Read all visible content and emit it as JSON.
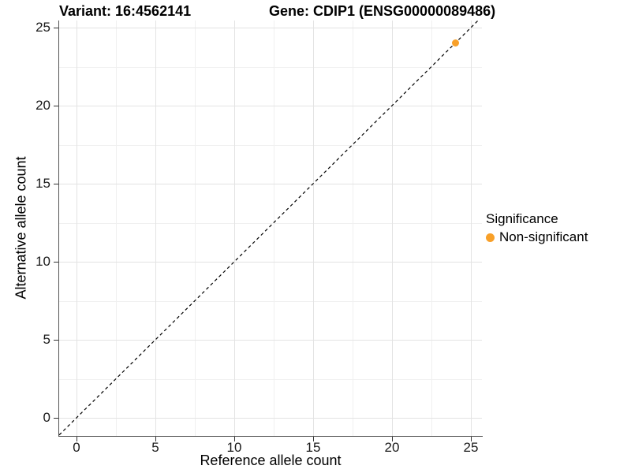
{
  "header": {
    "variant_title": "Variant: 16:4562141",
    "gene_title": "Gene: CDIP1 (ENSG00000089486)"
  },
  "legend": {
    "title": "Significance",
    "items": [
      {
        "label": "Non-significant",
        "color": "#F8A029"
      }
    ]
  },
  "colors": {
    "background": "#FFFFFF",
    "grid_major": "#E3E3E3",
    "grid_minor": "#F0F0F0",
    "axis_line": "#555555",
    "tick": "#333333",
    "text": "#000000",
    "point": "#F8A029",
    "reference_line": "#000000"
  },
  "chart_data": {
    "type": "scatter",
    "title": "Variant: 16:4562141   Gene: CDIP1 (ENSG00000089486)",
    "xlabel": "Reference allele count",
    "ylabel": "Alternative allele count",
    "x_ticks": [
      0,
      5,
      10,
      15,
      20,
      25
    ],
    "y_ticks": [
      0,
      5,
      10,
      15,
      20,
      25
    ],
    "x_minor_ticks": [
      2.5,
      7.5,
      12.5,
      17.5,
      22.5
    ],
    "y_minor_ticks": [
      2.5,
      7.5,
      12.5,
      17.5,
      22.5
    ],
    "xlim": [
      -1.1,
      25.7
    ],
    "ylim": [
      -1.16,
      25.45
    ],
    "grid": true,
    "legend_position": "right-center",
    "reference_line": {
      "type": "identity",
      "style": "dashed",
      "color": "#000000"
    },
    "series": [
      {
        "name": "Non-significant",
        "color": "#F8A029",
        "marker": "circle",
        "points": [
          {
            "x": 24,
            "y": 24
          }
        ]
      }
    ]
  }
}
